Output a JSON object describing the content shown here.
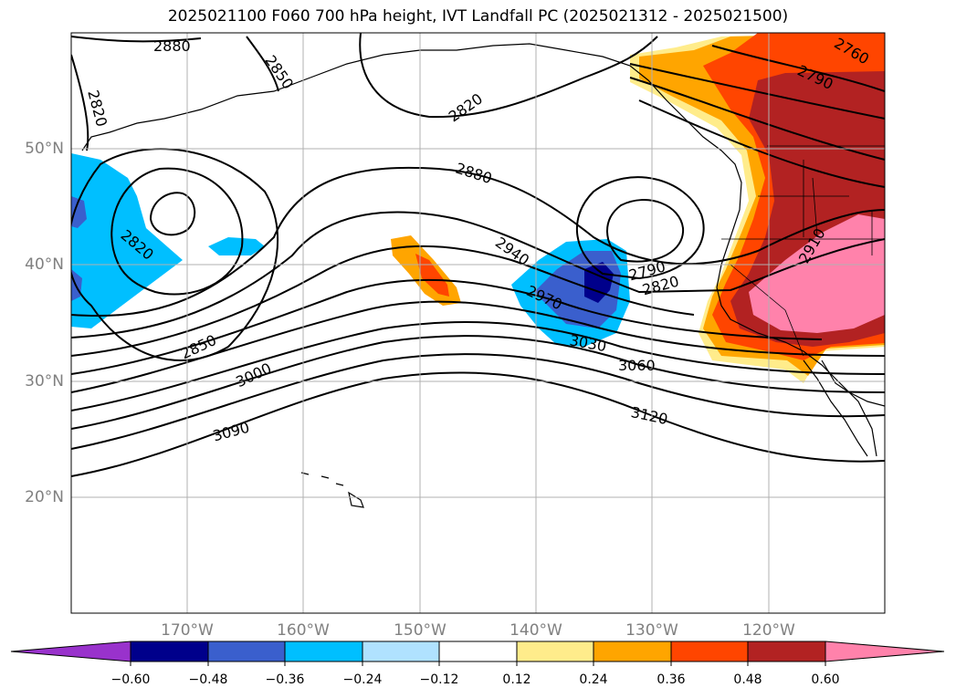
{
  "title": "2025021100 F060 700 hPa height, IVT Landfall PC (2025021312 - 2025021500)",
  "map": {
    "lat_labels": [
      "50°N",
      "40°N",
      "30°N",
      "20°N"
    ],
    "lon_labels": [
      "170°W",
      "160°W",
      "150°W",
      "140°W",
      "130°W",
      "120°W"
    ],
    "contour_labels": [
      "2880",
      "2850",
      "2820",
      "2820",
      "2880",
      "2940",
      "2970",
      "3030",
      "2790",
      "2820",
      "2910",
      "2760",
      "2790",
      "2850",
      "3000",
      "3060",
      "3090",
      "3120",
      "2820"
    ]
  },
  "colorbar": {
    "ticks": [
      "−0.60",
      "−0.48",
      "−0.36",
      "−0.24",
      "−0.12",
      "0.12",
      "0.24",
      "0.36",
      "0.48",
      "0.60"
    ],
    "colors": [
      "#9932cc",
      "#00008b",
      "#3a5fcd",
      "#00bfff",
      "#b0e2ff",
      "#ffffff",
      "#ffec8b",
      "#ffa500",
      "#ff4500",
      "#b22222",
      "#ff82ab"
    ]
  }
}
